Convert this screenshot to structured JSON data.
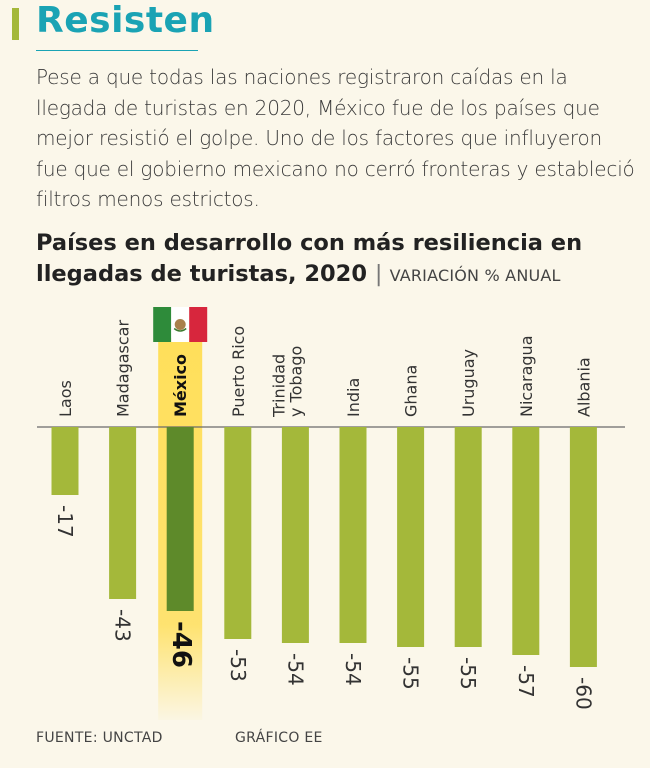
{
  "header": {
    "headline": "Resisten",
    "intro": "Pese a que todas las naciones registraron caídas en la llegada de turistas en 2020, México fue de los países que mejor resistió el golpe. Uno de los factores que influyeron fue que el gobierno mexicano no cerró fronteras y estableció filtros menos estrictos."
  },
  "colors": {
    "accent_teal": "#1aa3b4",
    "bar": "#a4b83a",
    "highlight_bar": "#5e8a2a",
    "highlight_band": "#ffdf5a"
  },
  "chart_data": {
    "type": "bar",
    "orientation": "vertical-negative",
    "title": "Países en desarrollo con más resiliencia en llegadas de turistas, 2020",
    "subtitle": "VARIACIÓN % ANUAL",
    "categories": [
      "Laos",
      "Madagascar",
      "México",
      "Puerto Rico",
      "Trinidad y Tobago",
      "India",
      "Ghana",
      "Uruguay",
      "Nicaragua",
      "Albania"
    ],
    "values": [
      -17,
      -43,
      -46,
      -53,
      -54,
      -54,
      -55,
      -55,
      -57,
      -60
    ],
    "value_labels": [
      "-17",
      "-43",
      "-46",
      "-53",
      "-54",
      "-54",
      "-55",
      "-55",
      "-57",
      "-60"
    ],
    "highlight": "México",
    "highlight_icon": "mexico-flag-icon",
    "ylim": [
      -60,
      0
    ],
    "xlabel": "",
    "ylabel": ""
  },
  "footer": {
    "source": "FUENTE: UNCTAD",
    "credit": "GRÁFICO EE"
  }
}
